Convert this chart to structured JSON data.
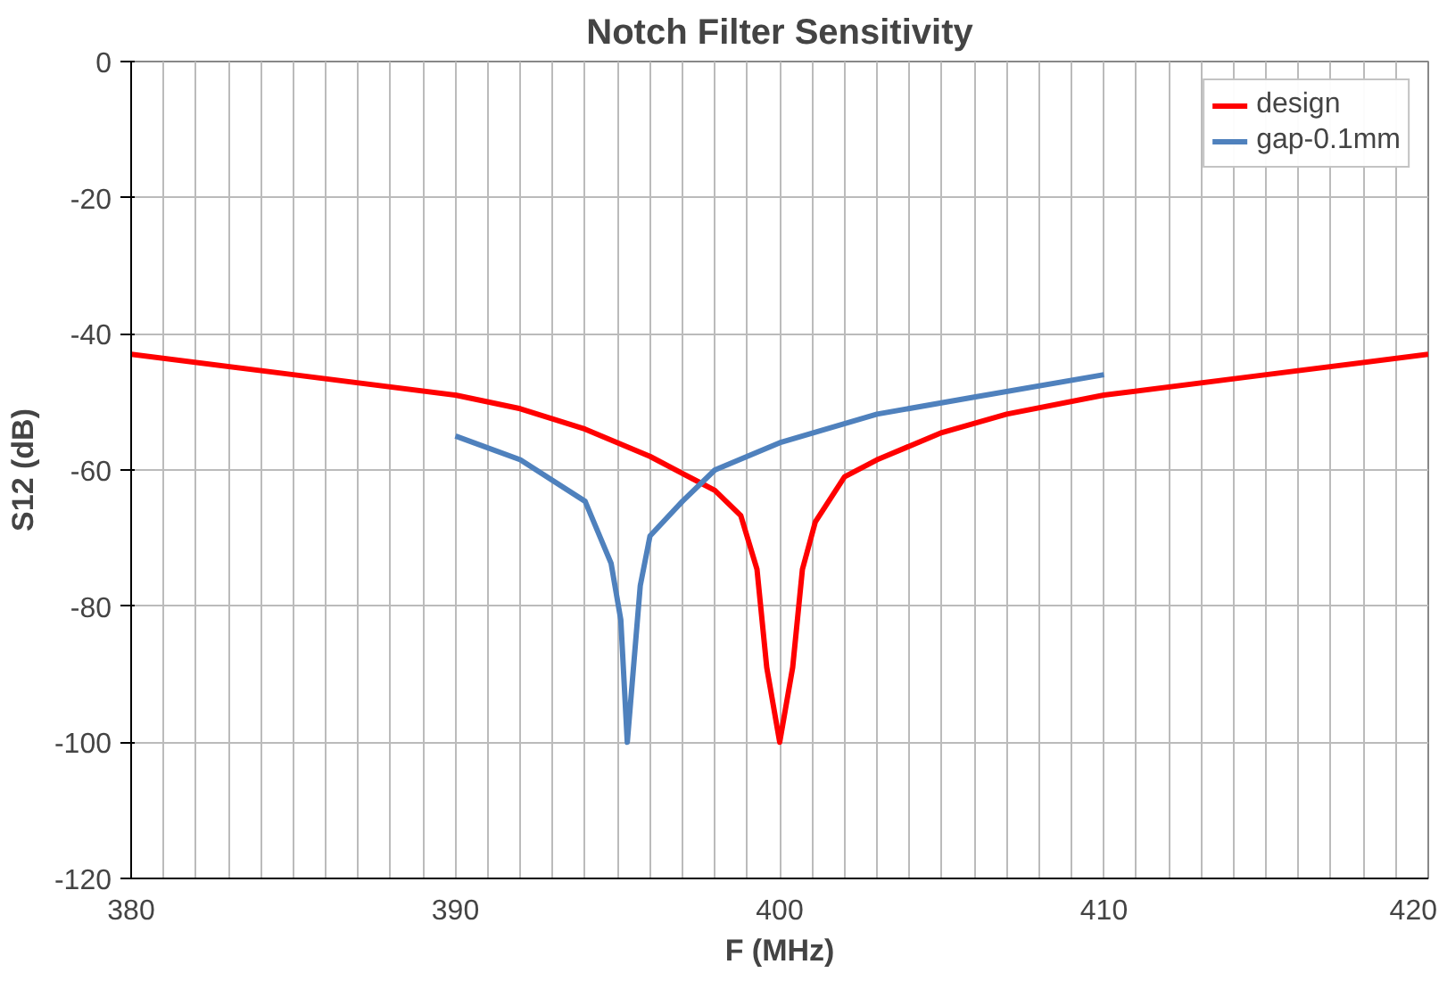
{
  "chart_data": {
    "type": "line",
    "title": "Notch Filter Sensitivity",
    "xlabel": "F (MHz)",
    "ylabel": "S12 (dB)",
    "xlim": [
      380,
      420
    ],
    "ylim": [
      -120,
      0
    ],
    "xticks": [
      380,
      {
        "value": 381,
        "label": null
      },
      {
        "value": 382,
        "label": null
      },
      {
        "value": 383,
        "label": null
      },
      {
        "value": 384,
        "label": null
      },
      {
        "value": 385,
        "label": null
      },
      {
        "value": 386,
        "label": null
      },
      {
        "value": 387,
        "label": null
      },
      {
        "value": 388,
        "label": null
      },
      {
        "value": 389,
        "label": null
      },
      390,
      {
        "value": 391,
        "label": null
      },
      {
        "value": 392,
        "label": null
      },
      {
        "value": 393,
        "label": null
      },
      {
        "value": 394,
        "label": null
      },
      {
        "value": 395,
        "label": null
      },
      {
        "value": 396,
        "label": null
      },
      {
        "value": 397,
        "label": null
      },
      {
        "value": 398,
        "label": null
      },
      {
        "value": 399,
        "label": null
      },
      400,
      {
        "value": 401,
        "label": null
      },
      {
        "value": 402,
        "label": null
      },
      {
        "value": 403,
        "label": null
      },
      {
        "value": 404,
        "label": null
      },
      {
        "value": 405,
        "label": null
      },
      {
        "value": 406,
        "label": null
      },
      {
        "value": 407,
        "label": null
      },
      {
        "value": 408,
        "label": null
      },
      {
        "value": 409,
        "label": null
      },
      410,
      {
        "value": 411,
        "label": null
      },
      {
        "value": 412,
        "label": null
      },
      {
        "value": 413,
        "label": null
      },
      {
        "value": 414,
        "label": null
      },
      {
        "value": 415,
        "label": null
      },
      {
        "value": 416,
        "label": null
      },
      {
        "value": 417,
        "label": null
      },
      {
        "value": 418,
        "label": null
      },
      {
        "value": 419,
        "label": null
      },
      420
    ],
    "yticks": [
      -120,
      -100,
      -80,
      -60,
      -40,
      -20,
      0
    ],
    "grid": true,
    "legend": "top right",
    "marker": "none",
    "line_style": "solid",
    "series": [
      {
        "name": "design",
        "color": "#ff0000",
        "x": [
          380,
          385,
          390,
          392,
          394,
          396,
          397.6,
          398,
          398.8,
          399.3,
          399.6,
          400,
          400.4,
          400.7,
          401.1,
          402,
          403,
          405,
          407,
          410,
          415,
          420
        ],
        "values": [
          -43,
          -46,
          -49,
          -51,
          -54,
          -58,
          -62,
          -63,
          -66.7,
          -74.6,
          -89,
          -100,
          -89,
          -74.6,
          -67.6,
          -61,
          -58.5,
          -54.5,
          -51.8,
          -49,
          -46,
          -43
        ]
      },
      {
        "name": "gap-0.1mm",
        "color": "#4f81bd",
        "x": [
          390,
          392,
          394,
          394.8,
          395.1,
          395.3,
          395.7,
          396,
          397,
          398,
          400,
          403,
          406,
          410
        ],
        "values": [
          -55,
          -58.5,
          -64.6,
          -73.7,
          -82,
          -100,
          -77,
          -69.7,
          -64.6,
          -60,
          -56,
          -51.8,
          -49.3,
          -46
        ]
      }
    ]
  }
}
